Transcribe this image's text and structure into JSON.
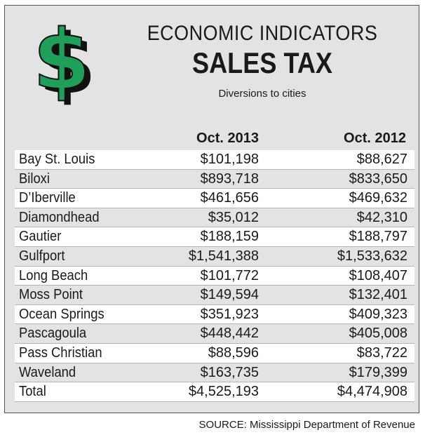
{
  "header": {
    "kicker": "ECONOMIC INDICATORS",
    "title": "SALES TAX",
    "subtitle": "Diversions to cities",
    "icon": "dollar-sign-icon",
    "icon_color": "#1fa05a"
  },
  "columns": {
    "col1": "Oct. 2013",
    "col2": "Oct. 2012"
  },
  "rows": [
    {
      "city": "Bay St. Louis",
      "oct2013": "$101,198",
      "oct2012": "$88,627"
    },
    {
      "city": "Biloxi",
      "oct2013": "$893,718",
      "oct2012": "$833,650"
    },
    {
      "city": "D’Iberville",
      "oct2013": "$461,656",
      "oct2012": "$469,632"
    },
    {
      "city": "Diamondhead",
      "oct2013": "$35,012",
      "oct2012": "$42,310"
    },
    {
      "city": "Gautier",
      "oct2013": "$188,159",
      "oct2012": "$188,797"
    },
    {
      "city": "Gulfport",
      "oct2013": "$1,541,388",
      "oct2012": "$1,533,632"
    },
    {
      "city": "Long Beach",
      "oct2013": "$101,772",
      "oct2012": "$108,407"
    },
    {
      "city": "Moss Point",
      "oct2013": "$149,594",
      "oct2012": "$132,401"
    },
    {
      "city": "Ocean Springs",
      "oct2013": "$351,923",
      "oct2012": "$409,323"
    },
    {
      "city": "Pascagoula",
      "oct2013": "$448,442",
      "oct2012": "$405,008"
    },
    {
      "city": "Pass Christian",
      "oct2013": "$88,596",
      "oct2012": "$83,722"
    },
    {
      "city": "Waveland",
      "oct2013": "$163,735",
      "oct2012": "$179,399"
    },
    {
      "city": "Total",
      "oct2013": "$4,525,193",
      "oct2012": "$4,474,908"
    }
  ],
  "source": "SOURCE: Mississippi Department of Revenue"
}
